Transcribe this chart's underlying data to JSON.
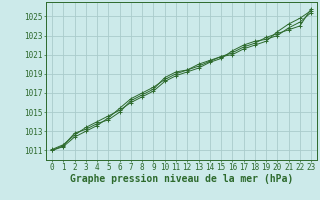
{
  "x_values": [
    0,
    1,
    2,
    3,
    4,
    5,
    6,
    7,
    8,
    9,
    10,
    11,
    12,
    13,
    14,
    15,
    16,
    17,
    18,
    19,
    20,
    21,
    22,
    23
  ],
  "series": [
    [
      1011.0,
      1011.5,
      1012.8,
      1013.2,
      1013.8,
      1014.2,
      1015.0,
      1016.2,
      1016.8,
      1017.4,
      1018.6,
      1019.2,
      1019.4,
      1019.8,
      1020.3,
      1020.8,
      1021.2,
      1021.8,
      1022.2,
      1022.8,
      1023.2,
      1023.6,
      1024.0,
      1025.8
    ],
    [
      1011.1,
      1011.6,
      1012.6,
      1013.4,
      1014.0,
      1014.6,
      1015.2,
      1016.0,
      1016.6,
      1017.2,
      1018.2,
      1018.8,
      1019.2,
      1019.6,
      1020.2,
      1020.6,
      1021.4,
      1022.0,
      1022.4,
      1022.6,
      1023.0,
      1023.8,
      1024.4,
      1025.4
    ],
    [
      1011.0,
      1011.4,
      1012.4,
      1013.0,
      1013.6,
      1014.4,
      1015.4,
      1016.4,
      1017.0,
      1017.6,
      1018.4,
      1019.0,
      1019.4,
      1020.0,
      1020.4,
      1020.8,
      1021.0,
      1021.6,
      1022.0,
      1022.4,
      1023.4,
      1024.2,
      1024.8,
      1025.6
    ]
  ],
  "line_color": "#2d6a2d",
  "marker_color": "#2d6a2d",
  "bg_color": "#cceaea",
  "grid_color": "#aacccc",
  "ylim": [
    1010.0,
    1026.5
  ],
  "yticks": [
    1011,
    1013,
    1015,
    1017,
    1019,
    1021,
    1023,
    1025
  ],
  "xlim": [
    -0.5,
    23.5
  ],
  "xtick_labels": [
    "0",
    "1",
    "2",
    "3",
    "4",
    "5",
    "6",
    "7",
    "8",
    "9",
    "10",
    "11",
    "12",
    "13",
    "14",
    "15",
    "16",
    "17",
    "18",
    "19",
    "20",
    "21",
    "22",
    "23"
  ],
  "xlabel": "Graphe pression niveau de la mer (hPa)",
  "tick_fontsize": 5.5,
  "label_fontsize": 7.0,
  "spine_color": "#2d6a2d"
}
